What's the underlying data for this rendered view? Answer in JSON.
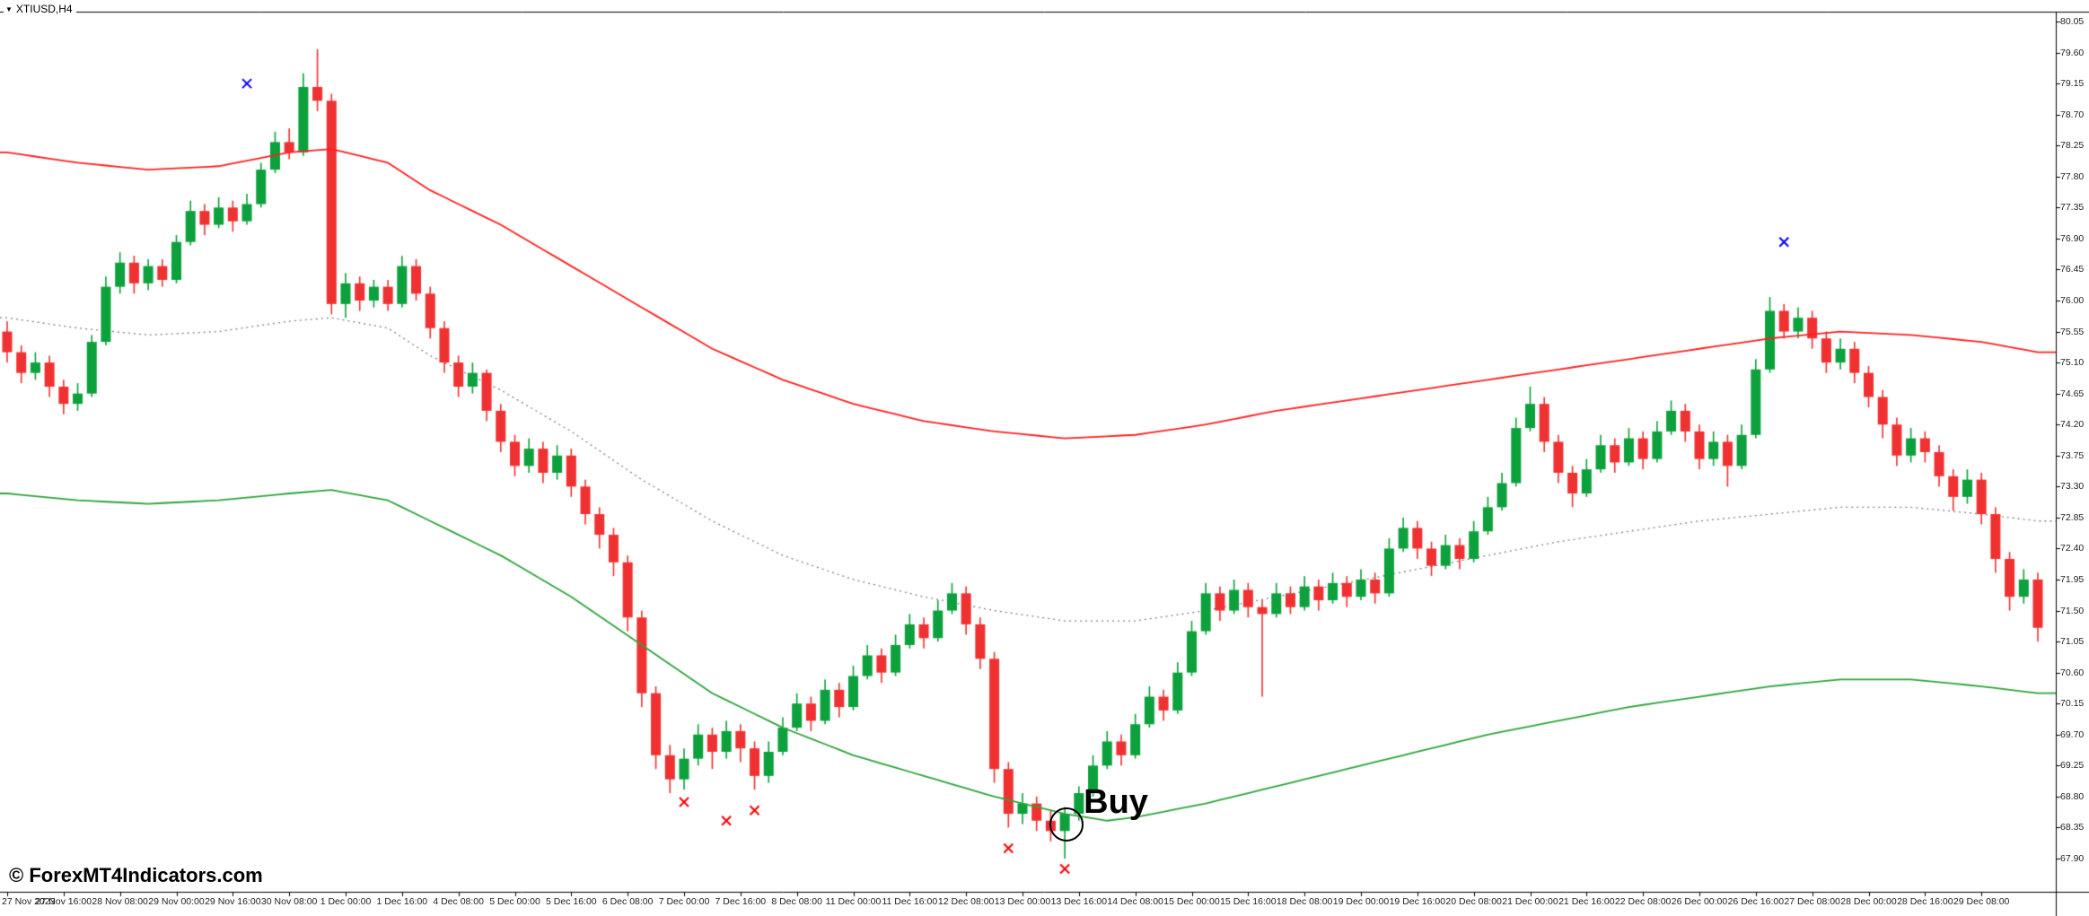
{
  "window": {
    "dropdown_icon": "▼",
    "symbol_label": "XTIUSD,H4"
  },
  "watermark": "© ForexMT4Indicators.com",
  "annotations": {
    "buy_label": "Buy",
    "buy_candle_index": 75,
    "buy_price": 68.42
  },
  "colors": {
    "background": "#ffffff",
    "bull": "#0ca13c",
    "bear": "#f03131",
    "band_upper": "#ff2020",
    "band_lower": "#2fa33c",
    "band_middle": "#808080",
    "marker_blue": "#0000ff",
    "marker_red": "#ff0000",
    "axis_line": "#000000",
    "axis_text": "#222222"
  },
  "chart_data": {
    "type": "candlestick",
    "symbol": "XTIUSD",
    "timeframe": "H4",
    "title": "XTIUSD,H4",
    "grid": false,
    "legend_position": "none",
    "y_axis": {
      "step": 0.45,
      "min": 67.9,
      "max": 80.05,
      "ticks": [
        "80.05",
        "79.60",
        "79.15",
        "78.70",
        "78.25",
        "77.80",
        "77.35",
        "76.90",
        "76.45",
        "76.00",
        "75.55",
        "75.10",
        "74.65",
        "74.20",
        "73.75",
        "73.30",
        "72.85",
        "72.40",
        "71.95",
        "71.50",
        "71.05",
        "70.60",
        "70.15",
        "69.70",
        "69.25",
        "68.80",
        "68.35",
        "67.90"
      ]
    },
    "x_axis": {
      "candles_per_label": 4,
      "labels": [
        "27 Nov 2023",
        "27 Nov 16:00",
        "28 Nov 08:00",
        "29 Nov 00:00",
        "29 Nov 16:00",
        "30 Nov 08:00",
        "1 Dec 00:00",
        "1 Dec 16:00",
        "4 Dec 08:00",
        "5 Dec 00:00",
        "5 Dec 16:00",
        "6 Dec 08:00",
        "7 Dec 00:00",
        "7 Dec 16:00",
        "8 Dec 08:00",
        "11 Dec 00:00",
        "11 Dec 16:00",
        "12 Dec 08:00",
        "13 Dec 00:00",
        "13 Dec 16:00",
        "14 Dec 08:00",
        "15 Dec 00:00",
        "15 Dec 16:00",
        "18 Dec 08:00",
        "19 Dec 00:00",
        "19 Dec 16:00",
        "20 Dec 08:00",
        "21 Dec 00:00",
        "21 Dec 16:00",
        "22 Dec 08:00",
        "26 Dec 00:00",
        "26 Dec 16:00",
        "27 Dec 08:00",
        "28 Dec 00:00",
        "28 Dec 16:00",
        "29 Dec 08:00"
      ]
    },
    "candles": [
      [
        75.55,
        75.7,
        75.1,
        75.25
      ],
      [
        75.25,
        75.35,
        74.8,
        74.95
      ],
      [
        74.95,
        75.25,
        74.85,
        75.1
      ],
      [
        75.1,
        75.2,
        74.6,
        74.75
      ],
      [
        74.75,
        74.85,
        74.35,
        74.5
      ],
      [
        74.5,
        74.8,
        74.4,
        74.65
      ],
      [
        74.65,
        75.5,
        74.6,
        75.4
      ],
      [
        75.4,
        76.35,
        75.35,
        76.2
      ],
      [
        76.2,
        76.7,
        76.1,
        76.55
      ],
      [
        76.55,
        76.65,
        76.1,
        76.25
      ],
      [
        76.25,
        76.6,
        76.15,
        76.5
      ],
      [
        76.5,
        76.6,
        76.2,
        76.3
      ],
      [
        76.3,
        76.95,
        76.25,
        76.85
      ],
      [
        76.85,
        77.45,
        76.8,
        77.3
      ],
      [
        77.3,
        77.4,
        76.95,
        77.1
      ],
      [
        77.1,
        77.5,
        77.05,
        77.35
      ],
      [
        77.35,
        77.45,
        77.0,
        77.15
      ],
      [
        77.15,
        77.55,
        77.1,
        77.4
      ],
      [
        77.4,
        78.0,
        77.35,
        77.9
      ],
      [
        77.9,
        78.45,
        77.85,
        78.3
      ],
      [
        78.3,
        78.5,
        78.05,
        78.15
      ],
      [
        78.15,
        79.3,
        78.1,
        79.1
      ],
      [
        79.1,
        79.65,
        78.75,
        78.9
      ],
      [
        78.9,
        79.0,
        75.8,
        75.95
      ],
      [
        75.95,
        76.4,
        75.75,
        76.25
      ],
      [
        76.25,
        76.35,
        75.85,
        76.0
      ],
      [
        76.0,
        76.3,
        75.9,
        76.2
      ],
      [
        76.2,
        76.3,
        75.85,
        75.95
      ],
      [
        75.95,
        76.65,
        75.9,
        76.5
      ],
      [
        76.5,
        76.6,
        76.0,
        76.1
      ],
      [
        76.1,
        76.2,
        75.45,
        75.6
      ],
      [
        75.6,
        75.7,
        74.95,
        75.1
      ],
      [
        75.1,
        75.2,
        74.6,
        74.75
      ],
      [
        74.75,
        75.1,
        74.65,
        74.95
      ],
      [
        74.95,
        75.0,
        74.25,
        74.4
      ],
      [
        74.4,
        74.5,
        73.8,
        73.95
      ],
      [
        73.95,
        74.05,
        73.45,
        73.6
      ],
      [
        73.6,
        74.0,
        73.5,
        73.85
      ],
      [
        73.85,
        73.95,
        73.35,
        73.5
      ],
      [
        73.5,
        73.9,
        73.4,
        73.75
      ],
      [
        73.75,
        73.85,
        73.15,
        73.3
      ],
      [
        73.3,
        73.4,
        72.75,
        72.9
      ],
      [
        72.9,
        73.0,
        72.4,
        72.6
      ],
      [
        72.6,
        72.7,
        72.0,
        72.2
      ],
      [
        72.2,
        72.3,
        71.2,
        71.4
      ],
      [
        71.4,
        71.5,
        70.1,
        70.3
      ],
      [
        70.3,
        70.4,
        69.2,
        69.4
      ],
      [
        69.4,
        69.55,
        68.85,
        69.05
      ],
      [
        69.05,
        69.5,
        68.9,
        69.35
      ],
      [
        69.35,
        69.85,
        69.25,
        69.7
      ],
      [
        69.7,
        69.8,
        69.2,
        69.45
      ],
      [
        69.45,
        69.9,
        69.35,
        69.75
      ],
      [
        69.75,
        69.85,
        69.3,
        69.5
      ],
      [
        69.5,
        69.6,
        68.9,
        69.1
      ],
      [
        69.1,
        69.6,
        69.0,
        69.45
      ],
      [
        69.45,
        69.95,
        69.4,
        69.8
      ],
      [
        69.8,
        70.3,
        69.75,
        70.15
      ],
      [
        70.15,
        70.25,
        69.75,
        69.9
      ],
      [
        69.9,
        70.5,
        69.85,
        70.35
      ],
      [
        70.35,
        70.45,
        69.95,
        70.1
      ],
      [
        70.1,
        70.7,
        70.05,
        70.55
      ],
      [
        70.55,
        71.0,
        70.5,
        70.85
      ],
      [
        70.85,
        70.95,
        70.45,
        70.6
      ],
      [
        70.6,
        71.15,
        70.55,
        71.0
      ],
      [
        71.0,
        71.45,
        70.95,
        71.3
      ],
      [
        71.3,
        71.4,
        70.95,
        71.1
      ],
      [
        71.1,
        71.65,
        71.05,
        71.5
      ],
      [
        71.5,
        71.9,
        71.45,
        71.75
      ],
      [
        71.75,
        71.85,
        71.15,
        71.3
      ],
      [
        71.3,
        71.4,
        70.65,
        70.8
      ],
      [
        70.8,
        70.9,
        69.0,
        69.2
      ],
      [
        69.2,
        69.3,
        68.35,
        68.55
      ],
      [
        68.55,
        68.85,
        68.4,
        68.7
      ],
      [
        68.7,
        68.8,
        68.3,
        68.45
      ],
      [
        68.45,
        68.6,
        68.15,
        68.3
      ],
      [
        68.3,
        68.65,
        67.9,
        68.55
      ],
      [
        68.55,
        68.95,
        68.45,
        68.85
      ],
      [
        68.85,
        69.4,
        68.8,
        69.25
      ],
      [
        69.25,
        69.75,
        69.2,
        69.6
      ],
      [
        69.6,
        69.7,
        69.25,
        69.4
      ],
      [
        69.4,
        70.0,
        69.35,
        69.85
      ],
      [
        69.85,
        70.4,
        69.8,
        70.25
      ],
      [
        70.25,
        70.35,
        69.9,
        70.05
      ],
      [
        70.05,
        70.75,
        70.0,
        70.6
      ],
      [
        70.6,
        71.35,
        70.55,
        71.2
      ],
      [
        71.2,
        71.9,
        71.15,
        71.75
      ],
      [
        71.75,
        71.85,
        71.35,
        71.5
      ],
      [
        71.5,
        71.95,
        71.45,
        71.8
      ],
      [
        71.8,
        71.9,
        71.4,
        71.55
      ],
      [
        71.55,
        71.65,
        70.25,
        71.45
      ],
      [
        71.45,
        71.9,
        71.4,
        71.75
      ],
      [
        71.75,
        71.85,
        71.45,
        71.55
      ],
      [
        71.55,
        72.0,
        71.5,
        71.85
      ],
      [
        71.85,
        71.95,
        71.5,
        71.65
      ],
      [
        71.65,
        72.05,
        71.6,
        71.9
      ],
      [
        71.9,
        72.0,
        71.55,
        71.7
      ],
      [
        71.7,
        72.1,
        71.65,
        71.95
      ],
      [
        71.95,
        72.05,
        71.6,
        71.75
      ],
      [
        71.75,
        72.55,
        71.7,
        72.4
      ],
      [
        72.4,
        72.85,
        72.35,
        72.7
      ],
      [
        72.7,
        72.8,
        72.25,
        72.4
      ],
      [
        72.4,
        72.5,
        72.0,
        72.15
      ],
      [
        72.15,
        72.6,
        72.1,
        72.45
      ],
      [
        72.45,
        72.55,
        72.1,
        72.25
      ],
      [
        72.25,
        72.8,
        72.2,
        72.65
      ],
      [
        72.65,
        73.15,
        72.6,
        73.0
      ],
      [
        73.0,
        73.5,
        72.95,
        73.35
      ],
      [
        73.35,
        74.3,
        73.3,
        74.15
      ],
      [
        74.15,
        74.75,
        74.1,
        74.5
      ],
      [
        74.5,
        74.6,
        73.8,
        73.95
      ],
      [
        73.95,
        74.05,
        73.35,
        73.5
      ],
      [
        73.5,
        73.6,
        73.0,
        73.2
      ],
      [
        73.2,
        73.7,
        73.15,
        73.55
      ],
      [
        73.55,
        74.05,
        73.5,
        73.9
      ],
      [
        73.9,
        74.0,
        73.5,
        73.65
      ],
      [
        73.65,
        74.15,
        73.6,
        74.0
      ],
      [
        74.0,
        74.1,
        73.55,
        73.7
      ],
      [
        73.7,
        74.25,
        73.65,
        74.1
      ],
      [
        74.1,
        74.55,
        74.05,
        74.4
      ],
      [
        74.4,
        74.5,
        73.95,
        74.1
      ],
      [
        74.1,
        74.2,
        73.55,
        73.7
      ],
      [
        73.7,
        74.1,
        73.6,
        73.95
      ],
      [
        73.95,
        74.05,
        73.3,
        73.6
      ],
      [
        73.6,
        74.2,
        73.55,
        74.05
      ],
      [
        74.05,
        75.15,
        74.0,
        75.0
      ],
      [
        75.0,
        76.05,
        74.95,
        75.85
      ],
      [
        75.85,
        75.95,
        75.45,
        75.55
      ],
      [
        75.55,
        75.9,
        75.45,
        75.75
      ],
      [
        75.75,
        75.85,
        75.3,
        75.45
      ],
      [
        75.45,
        75.55,
        74.95,
        75.1
      ],
      [
        75.1,
        75.45,
        75.0,
        75.3
      ],
      [
        75.3,
        75.4,
        74.8,
        74.95
      ],
      [
        74.95,
        75.05,
        74.45,
        74.6
      ],
      [
        74.6,
        74.7,
        74.0,
        74.2
      ],
      [
        74.2,
        74.3,
        73.6,
        73.75
      ],
      [
        73.75,
        74.15,
        73.65,
        74.0
      ],
      [
        74.0,
        74.1,
        73.65,
        73.8
      ],
      [
        73.8,
        73.9,
        73.3,
        73.45
      ],
      [
        73.45,
        73.55,
        72.95,
        73.15
      ],
      [
        73.15,
        73.55,
        73.05,
        73.4
      ],
      [
        73.4,
        73.5,
        72.75,
        72.9
      ],
      [
        72.9,
        73.0,
        72.05,
        72.25
      ],
      [
        72.25,
        72.35,
        71.5,
        71.7
      ],
      [
        71.7,
        72.1,
        71.6,
        71.95
      ],
      [
        71.95,
        72.05,
        71.05,
        71.25
      ]
    ],
    "bands": {
      "upper": [
        [
          0,
          78.15
        ],
        [
          5,
          78.0
        ],
        [
          10,
          77.9
        ],
        [
          15,
          77.95
        ],
        [
          20,
          78.15
        ],
        [
          23,
          78.2
        ],
        [
          27,
          78.0
        ],
        [
          30,
          77.6
        ],
        [
          35,
          77.1
        ],
        [
          40,
          76.5
        ],
        [
          45,
          75.9
        ],
        [
          50,
          75.3
        ],
        [
          55,
          74.85
        ],
        [
          60,
          74.5
        ],
        [
          65,
          74.25
        ],
        [
          70,
          74.1
        ],
        [
          75,
          74.0
        ],
        [
          80,
          74.05
        ],
        [
          85,
          74.2
        ],
        [
          90,
          74.4
        ],
        [
          95,
          74.55
        ],
        [
          100,
          74.7
        ],
        [
          105,
          74.85
        ],
        [
          110,
          75.0
        ],
        [
          115,
          75.15
        ],
        [
          120,
          75.3
        ],
        [
          125,
          75.45
        ],
        [
          130,
          75.55
        ],
        [
          135,
          75.5
        ],
        [
          140,
          75.4
        ],
        [
          144,
          75.25
        ]
      ],
      "middle": [
        [
          0,
          75.75
        ],
        [
          5,
          75.6
        ],
        [
          10,
          75.5
        ],
        [
          15,
          75.55
        ],
        [
          20,
          75.7
        ],
        [
          23,
          75.75
        ],
        [
          27,
          75.6
        ],
        [
          30,
          75.2
        ],
        [
          35,
          74.7
        ],
        [
          40,
          74.1
        ],
        [
          45,
          73.4
        ],
        [
          50,
          72.8
        ],
        [
          55,
          72.3
        ],
        [
          60,
          71.95
        ],
        [
          65,
          71.7
        ],
        [
          70,
          71.5
        ],
        [
          75,
          71.35
        ],
        [
          80,
          71.35
        ],
        [
          85,
          71.5
        ],
        [
          90,
          71.7
        ],
        [
          95,
          71.9
        ],
        [
          100,
          72.1
        ],
        [
          105,
          72.3
        ],
        [
          110,
          72.5
        ],
        [
          115,
          72.65
        ],
        [
          120,
          72.8
        ],
        [
          125,
          72.9
        ],
        [
          130,
          73.0
        ],
        [
          135,
          73.0
        ],
        [
          140,
          72.9
        ],
        [
          144,
          72.8
        ]
      ],
      "lower": [
        [
          0,
          73.2
        ],
        [
          5,
          73.1
        ],
        [
          10,
          73.05
        ],
        [
          15,
          73.1
        ],
        [
          20,
          73.2
        ],
        [
          23,
          73.25
        ],
        [
          27,
          73.1
        ],
        [
          30,
          72.8
        ],
        [
          35,
          72.3
        ],
        [
          40,
          71.7
        ],
        [
          45,
          71.0
        ],
        [
          50,
          70.3
        ],
        [
          55,
          69.8
        ],
        [
          60,
          69.4
        ],
        [
          65,
          69.1
        ],
        [
          70,
          68.8
        ],
        [
          75,
          68.55
        ],
        [
          78,
          68.45
        ],
        [
          80,
          68.5
        ],
        [
          85,
          68.7
        ],
        [
          90,
          68.95
        ],
        [
          95,
          69.2
        ],
        [
          100,
          69.45
        ],
        [
          105,
          69.7
        ],
        [
          110,
          69.9
        ],
        [
          115,
          70.1
        ],
        [
          120,
          70.25
        ],
        [
          125,
          70.4
        ],
        [
          130,
          70.5
        ],
        [
          135,
          70.5
        ],
        [
          140,
          70.4
        ],
        [
          144,
          70.3
        ]
      ]
    },
    "markers": {
      "blue_x": [
        [
          17,
          79.15
        ],
        [
          126,
          76.85
        ]
      ],
      "red_x": [
        [
          48,
          68.72
        ],
        [
          51,
          68.45
        ],
        [
          53,
          68.6
        ],
        [
          71,
          68.05
        ],
        [
          75,
          67.75
        ]
      ]
    }
  }
}
